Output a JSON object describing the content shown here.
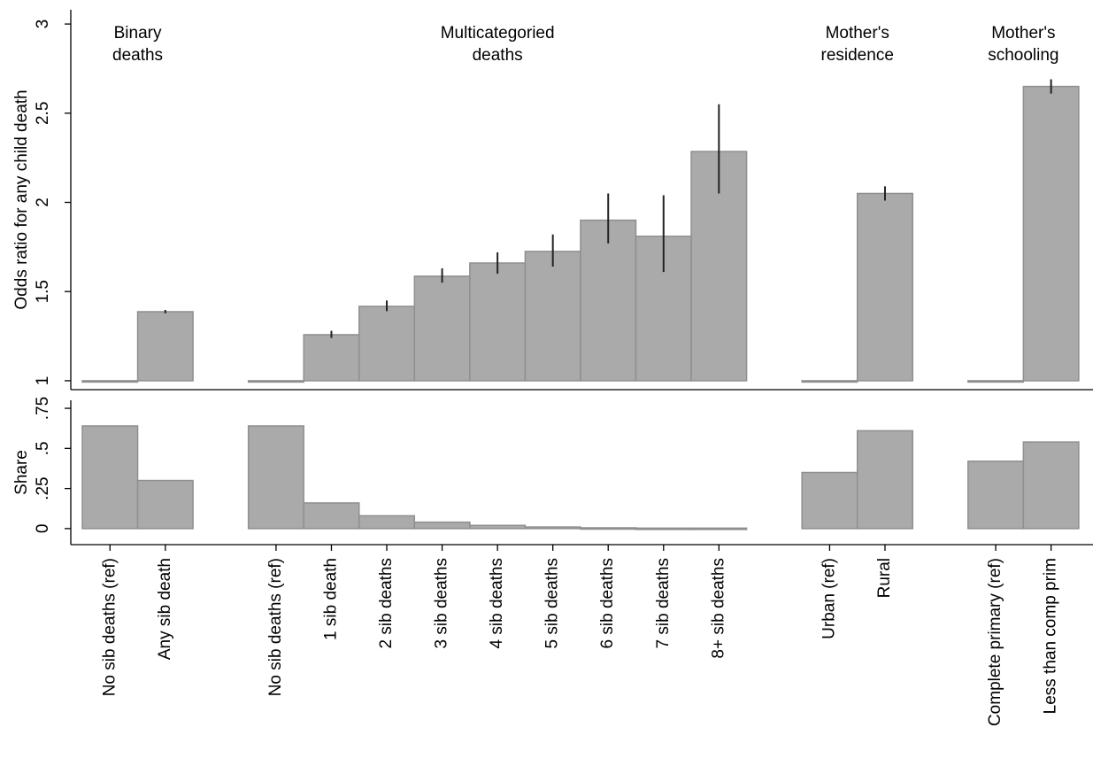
{
  "chart_data": [
    {
      "type": "bar",
      "y_label": "Odds ratio for any child death",
      "groups": [
        {
          "label": [
            "Binary",
            "deaths"
          ]
        },
        {
          "label": [
            "Multicategoried",
            "deaths"
          ]
        },
        {
          "label": [
            "Mother's",
            "residence"
          ]
        },
        {
          "label": [
            "Mother's",
            "schooling"
          ]
        }
      ],
      "categories": [
        "No sib deaths (ref)",
        "Any sib death",
        null,
        "No sib deaths (ref)",
        "1 sib death",
        "2 sib deaths",
        "3 sib deaths",
        "4 sib deaths",
        "5 sib deaths",
        "6 sib deaths",
        "7 sib deaths",
        "8+ sib deaths",
        null,
        "Urban (ref)",
        "Rural",
        null,
        "Complete primary (ref)",
        "Less than comp prim"
      ],
      "series": [
        {
          "name": null,
          "color": "#aaaaaa",
          "values": [
            1,
            1.387,
            null,
            1,
            1.258,
            1.417,
            1.586,
            1.66,
            1.725,
            1.9,
            1.81,
            2.285,
            null,
            1,
            2.05,
            null,
            1,
            2.65
          ],
          "ci_low": [
            null,
            1.378,
            null,
            null,
            1.24,
            1.39,
            1.55,
            1.6,
            1.64,
            1.77,
            1.61,
            2.05,
            null,
            null,
            2.01,
            null,
            null,
            2.61
          ],
          "ci_high": [
            null,
            1.397,
            null,
            null,
            1.28,
            1.45,
            1.63,
            1.72,
            1.82,
            2.05,
            2.04,
            2.55,
            null,
            null,
            2.09,
            null,
            null,
            2.69
          ]
        }
      ],
      "base": 1,
      "ylim": [
        0.95,
        3.08
      ],
      "yticks": [
        1,
        1.5,
        2,
        2.5,
        3
      ]
    },
    {
      "type": "bar",
      "y_label": "Share",
      "series": [
        {
          "name": null,
          "color": "#aaaaaa",
          "values": [
            0.64,
            0.3,
            null,
            0.64,
            0.16,
            0.08,
            0.04,
            0.02,
            0.01,
            0.005,
            0.003,
            0.003,
            null,
            0.35,
            0.61,
            null,
            0.42,
            0.54
          ]
        }
      ],
      "base": 0,
      "ylim": [
        -0.1,
        0.8
      ],
      "yticks": [
        0,
        {
          "value": 0.25,
          "label": ".25"
        },
        {
          "value": 0.5,
          "label": ".5"
        },
        {
          "value": 0.75,
          "label": ".75"
        }
      ]
    }
  ]
}
